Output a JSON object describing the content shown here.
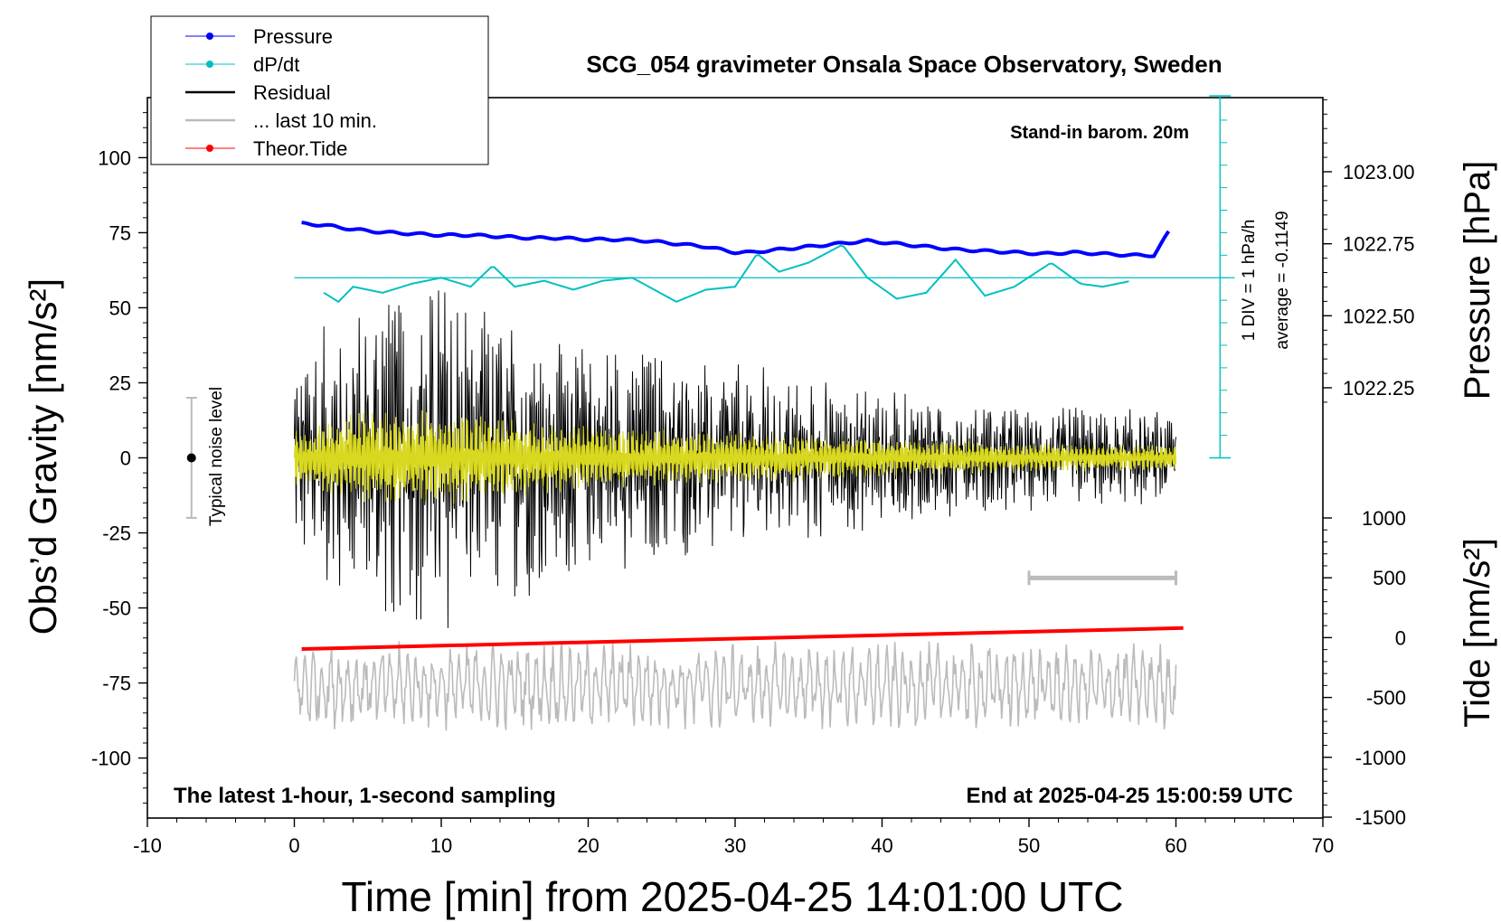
{
  "chart_data": {
    "type": "line",
    "title": "SCG_054 gravimeter Onsala Space Observatory, Sweden",
    "xlabel": "Time [min] from 2025-04-25 14:01:00 UTC",
    "ylabel_left": "Obs’d Gravity [nm/s²]",
    "ylabel_right_top": "Pressure [hPa]",
    "ylabel_right_bottom": "Tide [nm/s²]",
    "xlim": [
      -10,
      70
    ],
    "ylim": [
      -120,
      120
    ],
    "x_ticks": [
      "-10",
      "0",
      "10",
      "20",
      "30",
      "40",
      "50",
      "60",
      "70"
    ],
    "y_ticks_left": [
      "100",
      "75",
      "50",
      "25",
      "0",
      "-25",
      "-50",
      "-75",
      "-100"
    ],
    "y_ticks_pressure": [
      "1023.00",
      "1022.75",
      "1022.50",
      "1022.25"
    ],
    "y_ticks_tide": [
      "1000",
      "500",
      "0",
      "-500",
      "-1000",
      "-1500"
    ],
    "grid": false,
    "legend_position": "top-left, outside",
    "legend": [
      {
        "label": "Pressure",
        "color": "#0000ff"
      },
      {
        "label": "dP/dt",
        "color": "#00c0c0"
      },
      {
        "label": "Residual",
        "color": "#000000"
      },
      {
        "label": "... last 10 min.",
        "color": "#bbbbbb"
      },
      {
        "label": "Theor.Tide",
        "color": "#ff0000"
      }
    ],
    "annotations": {
      "stand_in": "Stand-in barom. 20m",
      "div_note": "1 DIV = 1 hPa/h",
      "average_note": "average = -0.1149",
      "noise_label": "Typical noise level",
      "bottom_left": "The latest 1-hour, 1-second sampling",
      "bottom_right": "End at 2025-04-25 15:00:59 UTC"
    },
    "series": [
      {
        "name": "Pressure",
        "unit": "hPa",
        "color": "#0000ff",
        "x": [
          0.5,
          2,
          4,
          6,
          8,
          10,
          12,
          14,
          16,
          18,
          20,
          22,
          24,
          26,
          28,
          30,
          31,
          33,
          35,
          37,
          39,
          41,
          43,
          45,
          47,
          49,
          51,
          53,
          55,
          57,
          58.5,
          59.5
        ],
        "y": [
          1022.82,
          1022.815,
          1022.8,
          1022.79,
          1022.785,
          1022.78,
          1022.78,
          1022.775,
          1022.77,
          1022.77,
          1022.765,
          1022.765,
          1022.76,
          1022.75,
          1022.74,
          1022.72,
          1022.72,
          1022.73,
          1022.74,
          1022.75,
          1022.76,
          1022.75,
          1022.74,
          1022.73,
          1022.725,
          1022.72,
          1022.715,
          1022.72,
          1022.715,
          1022.71,
          1022.71,
          1022.79
        ]
      },
      {
        "name": "dP/dt",
        "color": "#00c0c0",
        "average": -0.1149,
        "x": [
          2,
          3,
          4,
          6,
          8,
          10,
          12,
          13.5,
          15,
          17,
          19,
          21,
          23,
          26,
          28,
          30,
          31.5,
          33,
          35,
          37.3,
          39,
          41,
          43,
          45,
          47,
          49,
          51.5,
          53.5,
          55,
          57
        ],
        "y": [
          55,
          52,
          57,
          55,
          58,
          60,
          57,
          64,
          57,
          59,
          56,
          59,
          60,
          52,
          56,
          57,
          68,
          62,
          65,
          71,
          60,
          53,
          55,
          66,
          54,
          57,
          65,
          58,
          57,
          59
        ]
      },
      {
        "name": "Residual",
        "color": "#000000",
        "x_range": [
          0,
          60
        ],
        "envelope": {
          "x": [
            0,
            5,
            10,
            15,
            20,
            25,
            30,
            35,
            40,
            45,
            50,
            55,
            60
          ],
          "amplitude": [
            27,
            45,
            45,
            38,
            30,
            27,
            25,
            22,
            18,
            16,
            14,
            13,
            12
          ]
        }
      },
      {
        "name": "Theor.Tide",
        "unit": "nm/s²",
        "color": "#ff0000",
        "x": [
          0.5,
          60.5
        ],
        "y": [
          -95,
          80
        ]
      },
      {
        "name": "... last 10 min.",
        "color": "#bbbbbb",
        "x_range": [
          50,
          60
        ],
        "y_center": -76,
        "amplitude": 10
      }
    ],
    "noise_level": {
      "x": -7,
      "center": 0,
      "range": [
        -20,
        20
      ]
    },
    "scale_bar": {
      "x": [
        50,
        60
      ],
      "y": -40
    }
  }
}
